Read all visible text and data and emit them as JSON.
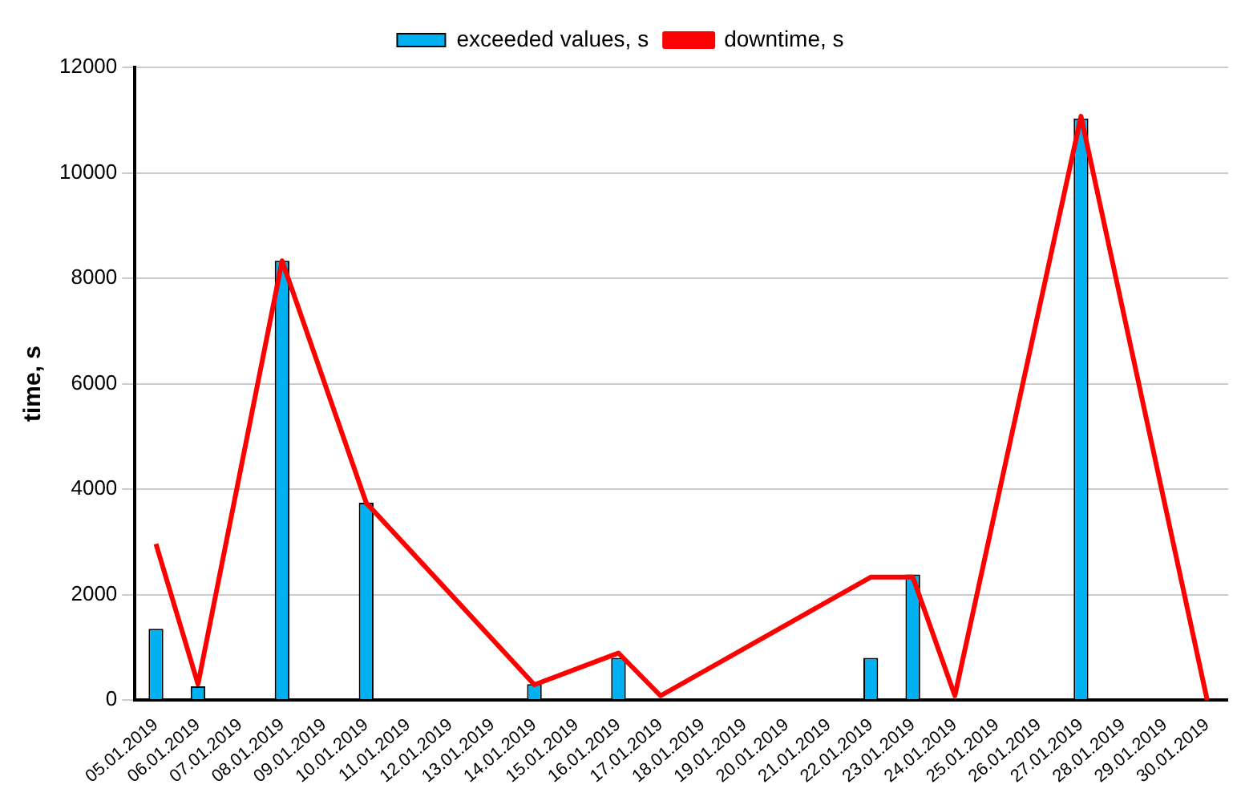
{
  "chart_data": {
    "type": "bar",
    "ylabel": "time, s",
    "categories": [
      "05.01.2019",
      "06.01.2019",
      "07.01.2019",
      "08.01.2019",
      "09.01.2019",
      "10.01.2019",
      "11.01.2019",
      "12.01.2019",
      "13.01.2019",
      "14.01.2019",
      "15.01.2019",
      "16.01.2019",
      "17.01.2019",
      "18.01.2019",
      "19.01.2019",
      "20.01.2019",
      "21.01.2019",
      "22.01.2019",
      "23.01.2019",
      "24.01.2019",
      "25.01.2019",
      "26.01.2019",
      "27.01.2019",
      "28.01.2019",
      "29.01.2019",
      "30.01.2019"
    ],
    "series": [
      {
        "name": "exceeded values, s",
        "color": "#00b0f0",
        "values": [
          1350,
          260,
          null,
          8330,
          null,
          3740,
          null,
          null,
          null,
          300,
          null,
          800,
          null,
          null,
          null,
          null,
          null,
          800,
          2380,
          null,
          null,
          null,
          11030,
          null,
          null,
          null
        ]
      },
      {
        "name": "downtime, s",
        "type": "line",
        "color": "#ff0000",
        "values": [
          2960,
          300,
          null,
          8330,
          null,
          3740,
          null,
          null,
          null,
          290,
          null,
          890,
          80,
          null,
          null,
          null,
          null,
          2330,
          2330,
          80,
          null,
          null,
          11070,
          null,
          null,
          0
        ]
      }
    ],
    "ylim": [
      0,
      12000
    ],
    "yticks": [
      0,
      2000,
      4000,
      6000,
      8000,
      10000,
      12000
    ],
    "grid": "y",
    "legend": "top",
    "marker": "none",
    "line_style": "solid"
  }
}
